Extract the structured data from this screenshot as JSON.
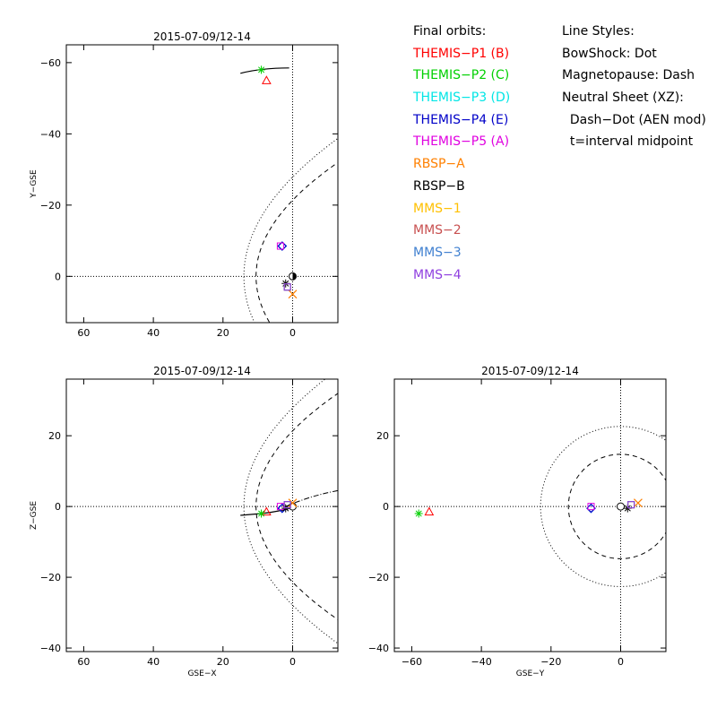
{
  "plot_title": "2015-07-09/12-14",
  "legend": {
    "orbits_heading": "Final orbits:",
    "orbits": [
      {
        "label": "THEMIS−P1 (B)",
        "color": "#ff0000",
        "marker": "triangle"
      },
      {
        "label": "THEMIS−P2 (C)",
        "color": "#00d000",
        "marker": "asterisk"
      },
      {
        "label": "THEMIS−P3 (D)",
        "color": "#00e5e5",
        "marker": "diamond"
      },
      {
        "label": "THEMIS−P4 (E)",
        "color": "#0000c8",
        "marker": "diamond"
      },
      {
        "label": "THEMIS−P5 (A)",
        "color": "#e000e0",
        "marker": "square"
      },
      {
        "label": "RBSP−A",
        "color": "#ff8000",
        "marker": "x"
      },
      {
        "label": "RBSP−B",
        "color": "#000000",
        "marker": "asterisk"
      },
      {
        "label": "MMS−1",
        "color": "#ffc000",
        "marker": "square"
      },
      {
        "label": "MMS−2",
        "color": "#c85050",
        "marker": "square"
      },
      {
        "label": "MMS−3",
        "color": "#4080d0",
        "marker": "square"
      },
      {
        "label": "MMS−4",
        "color": "#9040e0",
        "marker": "square"
      }
    ],
    "styles_heading": "Line Styles:",
    "styles": [
      "BowShock: Dot",
      "Magnetopause: Dash",
      "Neutral Sheet (XZ):",
      "  Dash−Dot (AEN mod)",
      "  t=interval midpoint"
    ]
  },
  "chart_data": [
    {
      "type": "scatter",
      "panel": "XY",
      "title": "2015-07-09/12-14",
      "xlabel": "",
      "ylabel": "Y−GSE",
      "xlim": [
        65,
        -13
      ],
      "ylim": [
        13,
        -65
      ],
      "xticks": [
        60,
        40,
        20,
        0
      ],
      "yticks": [
        -60,
        -40,
        -20,
        0
      ],
      "points": [
        {
          "name": "THEMIS-P1",
          "x": 7.5,
          "y": -55
        },
        {
          "name": "THEMIS-P2",
          "x": 9,
          "y": -58
        },
        {
          "name": "THEMIS-P3",
          "x": 3,
          "y": -8.5
        },
        {
          "name": "THEMIS-P4",
          "x": 3,
          "y": -8.5
        },
        {
          "name": "THEMIS-P5",
          "x": 3.5,
          "y": -8.5
        },
        {
          "name": "RBSP-A",
          "x": 0,
          "y": 5
        },
        {
          "name": "RBSP-B",
          "x": 2,
          "y": 2
        },
        {
          "name": "MMS-1",
          "x": 1.5,
          "y": 3
        },
        {
          "name": "MMS-2",
          "x": 1.5,
          "y": 3
        },
        {
          "name": "MMS-3",
          "x": 1.5,
          "y": 3
        },
        {
          "name": "MMS-4",
          "x": 1.5,
          "y": 3
        }
      ]
    },
    {
      "type": "scatter",
      "panel": "XZ",
      "title": "2015-07-09/12-14",
      "xlabel": "GSE−X",
      "ylabel": "Z−GSE",
      "xlim": [
        65,
        -13
      ],
      "ylim": [
        -41,
        36
      ],
      "xticks": [
        60,
        40,
        20,
        0
      ],
      "yticks": [
        -40,
        -20,
        0,
        20
      ],
      "points": [
        {
          "name": "THEMIS-P1",
          "x": 7.5,
          "y": -1.5
        },
        {
          "name": "THEMIS-P2",
          "x": 9,
          "y": -2
        },
        {
          "name": "THEMIS-P3",
          "x": 3,
          "y": -0.5
        },
        {
          "name": "THEMIS-P4",
          "x": 3,
          "y": -0.5
        },
        {
          "name": "THEMIS-P5",
          "x": 3.5,
          "y": 0
        },
        {
          "name": "RBSP-A",
          "x": 0,
          "y": 1
        },
        {
          "name": "RBSP-B",
          "x": 2,
          "y": -0.5
        },
        {
          "name": "MMS-1",
          "x": 1.5,
          "y": 0.5
        },
        {
          "name": "MMS-2",
          "x": 1.5,
          "y": 0.5
        },
        {
          "name": "MMS-3",
          "x": 1.5,
          "y": 0.5
        },
        {
          "name": "MMS-4",
          "x": 1.5,
          "y": 0.5
        }
      ]
    },
    {
      "type": "scatter",
      "panel": "YZ",
      "title": "2015-07-09/12-14",
      "xlabel": "GSE−Y",
      "ylabel": "",
      "xlim": [
        -65,
        13
      ],
      "ylim": [
        -41,
        36
      ],
      "xticks": [
        -60,
        -40,
        -20,
        0
      ],
      "yticks": [
        -40,
        -20,
        0,
        20
      ],
      "points": [
        {
          "name": "THEMIS-P1",
          "x": -55,
          "y": -1.5
        },
        {
          "name": "THEMIS-P2",
          "x": -58,
          "y": -2
        },
        {
          "name": "THEMIS-P3",
          "x": -8.5,
          "y": -0.5
        },
        {
          "name": "THEMIS-P4",
          "x": -8.5,
          "y": -0.5
        },
        {
          "name": "THEMIS-P5",
          "x": -8.5,
          "y": 0
        },
        {
          "name": "RBSP-A",
          "x": 5,
          "y": 1
        },
        {
          "name": "RBSP-B",
          "x": 2,
          "y": -0.5
        },
        {
          "name": "MMS-1",
          "x": 3,
          "y": 0.5
        },
        {
          "name": "MMS-2",
          "x": 3,
          "y": 0.5
        },
        {
          "name": "MMS-3",
          "x": 3,
          "y": 0.5
        },
        {
          "name": "MMS-4",
          "x": 3,
          "y": 0.5
        }
      ]
    }
  ]
}
